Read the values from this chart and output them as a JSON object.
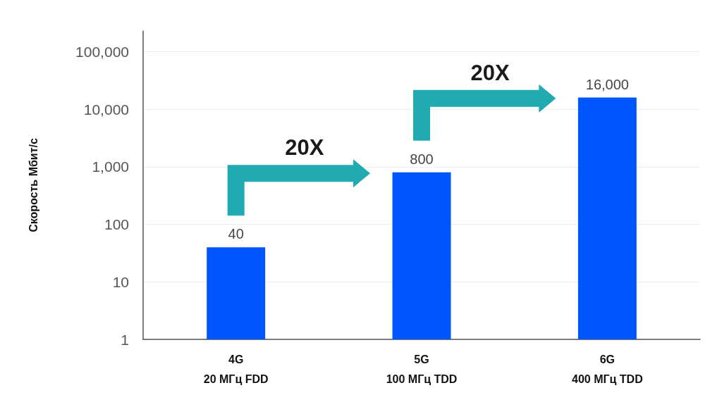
{
  "chart_data": {
    "type": "bar",
    "ylabel": "Скорость Мбит/с",
    "categories": [
      "4G\n20 МГц FDD",
      "5G\n100 МГц TDD",
      "6G\n400 МГц TDD"
    ],
    "values": [
      40,
      800,
      16000
    ],
    "color": "#0055ff",
    "value_labels": [
      "40",
      "800",
      "16,000"
    ],
    "log": "y",
    "ylim": [
      1,
      230000
    ],
    "yticks": [
      1,
      10,
      100,
      {
        "value": 1000,
        "label": "1,000"
      },
      {
        "value": 10000,
        "label": "10,000"
      },
      {
        "value": 100000,
        "label": "100,000"
      }
    ],
    "grid": "y",
    "annotations": [
      "20X",
      "20X"
    ]
  }
}
